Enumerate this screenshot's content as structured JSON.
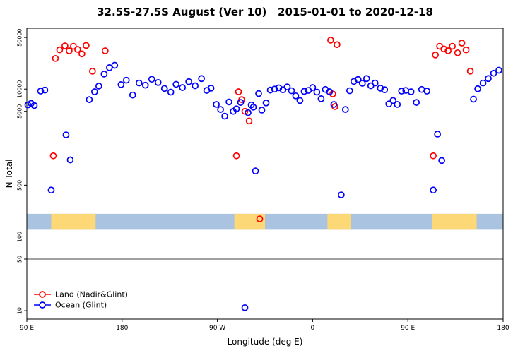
{
  "page": {
    "background": "#ffffff"
  },
  "chart_data": {
    "type": "scatter",
    "title": "32.5S-27.5S August (Ver 10)   2015-01-01 to 2020-12-18",
    "xlabel": "Longitude (deg E)",
    "ylabel": "N Total",
    "x_range": [
      90,
      540
    ],
    "y_scale": "log10",
    "y_range": [
      7.7,
      66700
    ],
    "grid": false,
    "x_ticks": [
      {
        "value": 90,
        "label": "90 E"
      },
      {
        "value": 180,
        "label": "180"
      },
      {
        "value": 270,
        "label": "90 W"
      },
      {
        "value": 360,
        "label": "0"
      },
      {
        "value": 450,
        "label": "90 E"
      },
      {
        "value": 540,
        "label": "180"
      }
    ],
    "y_ticks": [
      {
        "value": 10,
        "label": "10"
      },
      {
        "value": 50,
        "label": "50"
      },
      {
        "value": 100,
        "label": "100"
      },
      {
        "value": 500,
        "label": "500"
      },
      {
        "value": 5000,
        "label": "5000"
      },
      {
        "value": 10000,
        "label": "10000"
      },
      {
        "value": 50000,
        "label": "50000"
      }
    ],
    "reference_line_y": 50,
    "map_band": {
      "y_min": 125,
      "y_max": 205,
      "ocean_color": "#a9c3e0",
      "land_color": "#fcd877",
      "land_segments": [
        [
          113,
          155
        ],
        [
          286,
          315
        ],
        [
          374,
          396
        ],
        [
          473,
          515
        ]
      ]
    },
    "legend": {
      "position": "bottom-left"
    },
    "series": [
      {
        "name": "Land (Nadir&Glint)",
        "color": "#ff0000",
        "marker": "open-circle",
        "points": [
          [
            115,
            1250
          ],
          [
            117,
            26000
          ],
          [
            121,
            34000
          ],
          [
            126,
            38500
          ],
          [
            130,
            33000
          ],
          [
            134,
            38000
          ],
          [
            138,
            34500
          ],
          [
            142,
            30000
          ],
          [
            146,
            39000
          ],
          [
            152,
            17500
          ],
          [
            164,
            33000
          ],
          [
            288,
            1250
          ],
          [
            290,
            9200
          ],
          [
            293,
            7200
          ],
          [
            296,
            5000
          ],
          [
            300,
            3700
          ],
          [
            310,
            175
          ],
          [
            377,
            46000
          ],
          [
            383,
            40000
          ],
          [
            379,
            8600
          ],
          [
            381,
            5800
          ],
          [
            474,
            1250
          ],
          [
            476,
            29000
          ],
          [
            480,
            38000
          ],
          [
            484,
            35000
          ],
          [
            488,
            33000
          ],
          [
            492,
            38000
          ],
          [
            497,
            31000
          ],
          [
            501,
            42000
          ],
          [
            505,
            34000
          ],
          [
            509,
            17500
          ]
        ]
      },
      {
        "name": "Ocean (Glint)",
        "color": "#0000ff",
        "marker": "open-circle",
        "points": [
          [
            91,
            6100
          ],
          [
            94,
            6400
          ],
          [
            97,
            6000
          ],
          [
            103,
            9400
          ],
          [
            107,
            9700
          ],
          [
            113,
            430
          ],
          [
            127,
            2400
          ],
          [
            131,
            1100
          ],
          [
            149,
            7200
          ],
          [
            154,
            9200
          ],
          [
            158,
            11000
          ],
          [
            163,
            16000
          ],
          [
            168,
            19500
          ],
          [
            173,
            21000
          ],
          [
            179,
            11500
          ],
          [
            184,
            13200
          ],
          [
            190,
            8300
          ],
          [
            196,
            12100
          ],
          [
            202,
            11300
          ],
          [
            208,
            13600
          ],
          [
            214,
            12300
          ],
          [
            220,
            10200
          ],
          [
            226,
            9100
          ],
          [
            231,
            11600
          ],
          [
            237,
            10500
          ],
          [
            243,
            12600
          ],
          [
            249,
            11100
          ],
          [
            255,
            13900
          ],
          [
            260,
            9600
          ],
          [
            264,
            10300
          ],
          [
            269,
            6200
          ],
          [
            273,
            5300
          ],
          [
            277,
            4300
          ],
          [
            281,
            6700
          ],
          [
            285,
            5000
          ],
          [
            288,
            5400
          ],
          [
            292,
            6600
          ],
          [
            296,
            11
          ],
          [
            299,
            4800
          ],
          [
            302,
            6100
          ],
          [
            304,
            5700
          ],
          [
            306,
            780
          ],
          [
            309,
            8700
          ],
          [
            312,
            5200
          ],
          [
            316,
            6500
          ],
          [
            320,
            9700
          ],
          [
            324,
            10000
          ],
          [
            328,
            10400
          ],
          [
            332,
            9800
          ],
          [
            336,
            10700
          ],
          [
            340,
            9500
          ],
          [
            344,
            8100
          ],
          [
            348,
            7000
          ],
          [
            352,
            9300
          ],
          [
            356,
            9600
          ],
          [
            360,
            10500
          ],
          [
            364,
            9100
          ],
          [
            368,
            7400
          ],
          [
            372,
            9900
          ],
          [
            376,
            9200
          ],
          [
            380,
            6200
          ],
          [
            387,
            370
          ],
          [
            391,
            5300
          ],
          [
            395,
            9500
          ],
          [
            399,
            12700
          ],
          [
            403,
            13500
          ],
          [
            407,
            12000
          ],
          [
            411,
            13900
          ],
          [
            415,
            11100
          ],
          [
            419,
            12100
          ],
          [
            424,
            10300
          ],
          [
            428,
            9800
          ],
          [
            432,
            6300
          ],
          [
            436,
            7000
          ],
          [
            440,
            6200
          ],
          [
            444,
            9400
          ],
          [
            448,
            9600
          ],
          [
            453,
            9200
          ],
          [
            458,
            6600
          ],
          [
            463,
            9900
          ],
          [
            468,
            9400
          ],
          [
            474,
            430
          ],
          [
            478,
            2460
          ],
          [
            482,
            1080
          ],
          [
            512,
            7300
          ],
          [
            516,
            10100
          ],
          [
            521,
            12100
          ],
          [
            526,
            13900
          ],
          [
            531,
            16400
          ],
          [
            536,
            18000
          ]
        ]
      }
    ]
  }
}
